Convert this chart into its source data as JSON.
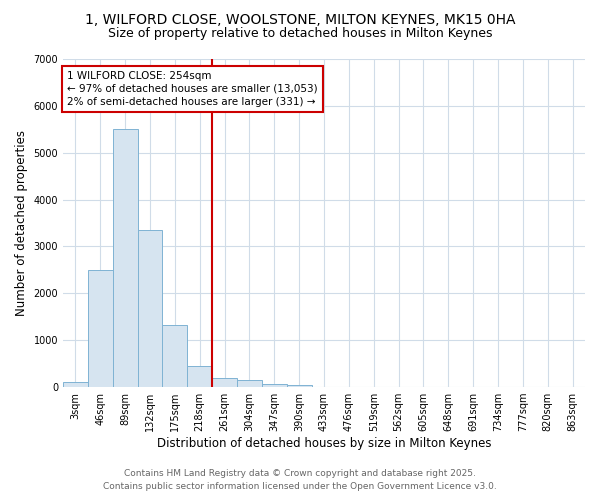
{
  "title_line1": "1, WILFORD CLOSE, WOOLSTONE, MILTON KEYNES, MK15 0HA",
  "title_line2": "Size of property relative to detached houses in Milton Keynes",
  "xlabel": "Distribution of detached houses by size in Milton Keynes",
  "ylabel": "Number of detached properties",
  "bar_labels": [
    "3sqm",
    "46sqm",
    "89sqm",
    "132sqm",
    "175sqm",
    "218sqm",
    "261sqm",
    "304sqm",
    "347sqm",
    "390sqm",
    "433sqm",
    "476sqm",
    "519sqm",
    "562sqm",
    "605sqm",
    "648sqm",
    "691sqm",
    "734sqm",
    "777sqm",
    "820sqm",
    "863sqm"
  ],
  "bar_values": [
    100,
    2500,
    5500,
    3350,
    1330,
    450,
    200,
    160,
    75,
    40,
    10,
    5,
    2,
    1,
    0,
    0,
    0,
    0,
    0,
    0,
    0
  ],
  "bar_color_face": "#d6e4f0",
  "bar_color_edge": "#7fb3d3",
  "vline_x": 6,
  "vline_color": "#cc0000",
  "annotation_text": "1 WILFORD CLOSE: 254sqm\n← 97% of detached houses are smaller (13,053)\n2% of semi-detached houses are larger (331) →",
  "annotation_box_color": "#cc0000",
  "annotation_text_color": "#000000",
  "ylim": [
    0,
    7000
  ],
  "yticks": [
    0,
    1000,
    2000,
    3000,
    4000,
    5000,
    6000,
    7000
  ],
  "background_color": "#ffffff",
  "grid_color": "#d0dce8",
  "footer_line1": "Contains HM Land Registry data © Crown copyright and database right 2025.",
  "footer_line2": "Contains public sector information licensed under the Open Government Licence v3.0.",
  "title_fontsize": 10,
  "subtitle_fontsize": 9,
  "axis_label_fontsize": 8.5,
  "tick_fontsize": 7,
  "footer_fontsize": 6.5,
  "annotation_fontsize": 7.5
}
